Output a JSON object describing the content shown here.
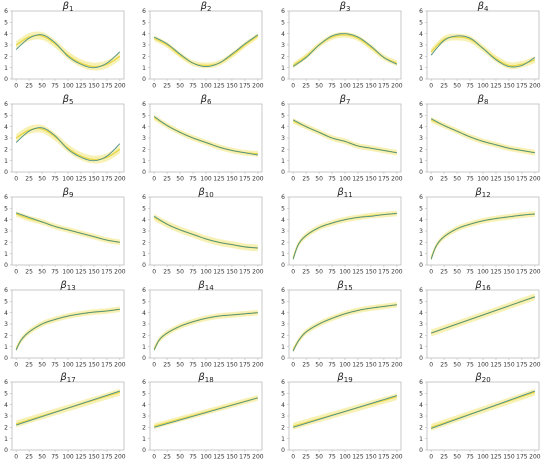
{
  "chart_data": {
    "type": "line",
    "x_ticks": [
      0,
      25,
      50,
      75,
      100,
      125,
      150,
      175,
      200
    ],
    "y_ticks": [
      0,
      1,
      2,
      3,
      4,
      5,
      6
    ],
    "xlim": [
      -8,
      208
    ],
    "ylim": [
      0,
      6
    ],
    "grid": false,
    "colors": {
      "true": "#4a8f8a",
      "band": "#f2e67a",
      "estimate": "#e8d84a",
      "axis": "#bbbbbb"
    },
    "panels": [
      {
        "title": "β1",
        "x": [
          0,
          25,
          50,
          75,
          100,
          125,
          150,
          175,
          200
        ],
        "true": [
          2.6,
          3.6,
          3.9,
          3.2,
          2.0,
          1.3,
          1.0,
          1.4,
          2.4
        ],
        "estimate": [
          3.0,
          3.7,
          3.8,
          3.1,
          2.1,
          1.4,
          1.1,
          1.3,
          2.0
        ],
        "band_width": 0.35
      },
      {
        "title": "β2",
        "x": [
          0,
          25,
          50,
          75,
          100,
          125,
          150,
          175,
          200
        ],
        "true": [
          3.7,
          3.1,
          2.2,
          1.4,
          1.1,
          1.4,
          2.2,
          3.1,
          3.9
        ],
        "estimate": [
          3.6,
          3.0,
          2.1,
          1.4,
          1.2,
          1.4,
          2.1,
          3.0,
          3.8
        ],
        "band_width": 0.25
      },
      {
        "title": "β3",
        "x": [
          0,
          25,
          50,
          75,
          100,
          125,
          150,
          175,
          200
        ],
        "true": [
          1.1,
          1.9,
          3.0,
          3.8,
          4.0,
          3.7,
          2.9,
          1.9,
          1.3
        ],
        "estimate": [
          1.2,
          2.0,
          3.0,
          3.7,
          3.9,
          3.6,
          2.8,
          1.9,
          1.4
        ],
        "band_width": 0.25
      },
      {
        "title": "β4",
        "x": [
          0,
          25,
          50,
          75,
          100,
          125,
          150,
          175,
          200
        ],
        "true": [
          2.1,
          3.4,
          3.8,
          3.6,
          2.7,
          1.7,
          1.1,
          1.2,
          1.9
        ],
        "estimate": [
          2.4,
          3.5,
          3.7,
          3.5,
          2.7,
          1.8,
          1.2,
          1.3,
          1.7
        ],
        "band_width": 0.3
      },
      {
        "title": "β5",
        "x": [
          0,
          25,
          50,
          75,
          100,
          125,
          150,
          175,
          200
        ],
        "true": [
          2.6,
          3.6,
          3.9,
          3.2,
          2.0,
          1.3,
          1.0,
          1.4,
          2.5
        ],
        "estimate": [
          3.0,
          3.7,
          3.8,
          3.1,
          2.1,
          1.4,
          1.1,
          1.3,
          2.0
        ],
        "band_width": 0.35
      },
      {
        "title": "β6",
        "x": [
          0,
          25,
          50,
          75,
          100,
          125,
          150,
          175,
          200
        ],
        "true": [
          4.9,
          4.1,
          3.5,
          3.0,
          2.6,
          2.2,
          1.9,
          1.7,
          1.5
        ],
        "estimate": [
          4.8,
          4.1,
          3.5,
          3.0,
          2.6,
          2.2,
          1.9,
          1.7,
          1.6
        ],
        "band_width": 0.25
      },
      {
        "title": "β7",
        "x": [
          0,
          25,
          50,
          75,
          100,
          125,
          150,
          175,
          200
        ],
        "true": [
          4.6,
          4.0,
          3.5,
          3.0,
          2.7,
          2.3,
          2.1,
          1.9,
          1.7
        ],
        "estimate": [
          4.5,
          4.0,
          3.5,
          3.0,
          2.7,
          2.3,
          2.1,
          1.9,
          1.7
        ],
        "band_width": 0.25
      },
      {
        "title": "β8",
        "x": [
          0,
          25,
          50,
          75,
          100,
          125,
          150,
          175,
          200
        ],
        "true": [
          4.7,
          4.1,
          3.6,
          3.1,
          2.7,
          2.4,
          2.1,
          1.9,
          1.7
        ],
        "estimate": [
          4.6,
          4.1,
          3.6,
          3.1,
          2.7,
          2.4,
          2.1,
          1.9,
          1.7
        ],
        "band_width": 0.25
      },
      {
        "title": "β9",
        "x": [
          0,
          25,
          50,
          75,
          100,
          125,
          150,
          175,
          200
        ],
        "true": [
          4.6,
          4.2,
          3.8,
          3.4,
          3.1,
          2.8,
          2.5,
          2.2,
          2.0
        ],
        "estimate": [
          4.5,
          4.1,
          3.8,
          3.4,
          3.1,
          2.8,
          2.5,
          2.2,
          2.0
        ],
        "band_width": 0.25
      },
      {
        "title": "β10",
        "x": [
          0,
          25,
          50,
          75,
          100,
          125,
          150,
          175,
          200
        ],
        "true": [
          4.3,
          3.6,
          3.1,
          2.7,
          2.3,
          2.0,
          1.8,
          1.6,
          1.5
        ],
        "estimate": [
          4.2,
          3.6,
          3.1,
          2.7,
          2.3,
          2.0,
          1.8,
          1.6,
          1.5
        ],
        "band_width": 0.3
      },
      {
        "title": "β11",
        "x": [
          0,
          10,
          25,
          50,
          75,
          100,
          125,
          150,
          175,
          200
        ],
        "true": [
          0.5,
          1.8,
          2.6,
          3.3,
          3.7,
          4.0,
          4.2,
          4.3,
          4.45,
          4.55
        ],
        "estimate": [
          0.6,
          1.8,
          2.6,
          3.3,
          3.7,
          4.0,
          4.2,
          4.35,
          4.45,
          4.55
        ],
        "band_width": 0.25
      },
      {
        "title": "β12",
        "x": [
          0,
          10,
          25,
          50,
          75,
          100,
          125,
          150,
          175,
          200
        ],
        "true": [
          0.5,
          1.7,
          2.5,
          3.2,
          3.6,
          3.9,
          4.1,
          4.25,
          4.4,
          4.5
        ],
        "estimate": [
          0.6,
          1.7,
          2.5,
          3.2,
          3.6,
          3.9,
          4.1,
          4.25,
          4.4,
          4.5
        ],
        "band_width": 0.25
      },
      {
        "title": "β13",
        "x": [
          0,
          10,
          25,
          50,
          75,
          100,
          125,
          150,
          175,
          200
        ],
        "true": [
          0.7,
          1.6,
          2.3,
          3.0,
          3.4,
          3.7,
          3.9,
          4.05,
          4.15,
          4.3
        ],
        "estimate": [
          0.8,
          1.6,
          2.3,
          3.0,
          3.4,
          3.7,
          3.9,
          4.05,
          4.15,
          4.3
        ],
        "band_width": 0.25
      },
      {
        "title": "β14",
        "x": [
          0,
          10,
          25,
          50,
          75,
          100,
          125,
          150,
          175,
          200
        ],
        "true": [
          0.7,
          1.6,
          2.2,
          2.8,
          3.2,
          3.5,
          3.7,
          3.8,
          3.9,
          4.0
        ],
        "estimate": [
          0.8,
          1.6,
          2.2,
          2.8,
          3.2,
          3.5,
          3.7,
          3.8,
          3.9,
          4.0
        ],
        "band_width": 0.25
      },
      {
        "title": "β15",
        "x": [
          0,
          10,
          25,
          50,
          75,
          100,
          125,
          150,
          175,
          200
        ],
        "true": [
          0.6,
          1.5,
          2.3,
          3.0,
          3.5,
          3.9,
          4.2,
          4.4,
          4.55,
          4.7
        ],
        "estimate": [
          0.7,
          1.5,
          2.3,
          3.0,
          3.5,
          3.9,
          4.2,
          4.4,
          4.55,
          4.7
        ],
        "band_width": 0.25
      },
      {
        "title": "β16",
        "x": [
          0,
          200
        ],
        "true": [
          2.2,
          5.4
        ],
        "estimate": [
          2.2,
          5.4
        ],
        "band_width": 0.3
      },
      {
        "title": "β17",
        "x": [
          0,
          200
        ],
        "true": [
          2.2,
          5.2
        ],
        "estimate": [
          2.3,
          5.1
        ],
        "band_width": 0.3
      },
      {
        "title": "β18",
        "x": [
          0,
          200
        ],
        "true": [
          2.0,
          4.6
        ],
        "estimate": [
          2.1,
          4.6
        ],
        "band_width": 0.25
      },
      {
        "title": "β19",
        "x": [
          0,
          200
        ],
        "true": [
          2.0,
          4.8
        ],
        "estimate": [
          2.1,
          4.7
        ],
        "band_width": 0.3
      },
      {
        "title": "β20",
        "x": [
          0,
          200
        ],
        "true": [
          1.9,
          5.2
        ],
        "estimate": [
          2.0,
          5.1
        ],
        "band_width": 0.3
      }
    ]
  }
}
